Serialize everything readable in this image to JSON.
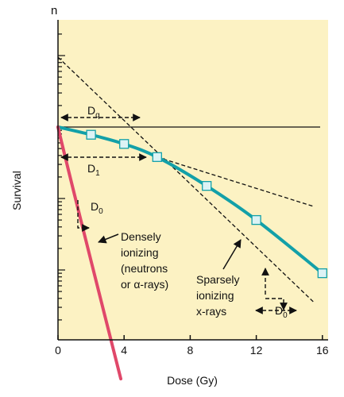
{
  "chart_data": {
    "type": "line",
    "title": "",
    "xlabel": "Dose (Gy)",
    "ylabel": "Survival",
    "xlim": [
      0,
      16
    ],
    "x_ticks": [
      0,
      4,
      8,
      12,
      16
    ],
    "y_scale": "log",
    "y_decades": 4,
    "grid": false,
    "series": [
      {
        "name": "Sparsely ionizing x-rays",
        "x": [
          0,
          2,
          4,
          6,
          9,
          12,
          16
        ],
        "y": [
          1.0,
          0.78,
          0.58,
          0.38,
          0.15,
          0.05,
          0.009
        ]
      },
      {
        "name": "Densely ionizing (neutrons or α-rays)",
        "x": [
          0,
          3.8
        ],
        "y": [
          1.0,
          0.0003
        ]
      }
    ],
    "markers": {
      "x": [
        2,
        4,
        6,
        9,
        12,
        16
      ],
      "y": [
        0.78,
        0.58,
        0.38,
        0.15,
        0.05,
        0.009
      ]
    },
    "reference_lines": {
      "extrapolation": {
        "x": [
          0,
          15.5
        ],
        "y": [
          9.5,
          0.0035
        ]
      },
      "initial_slope": {
        "x": [
          6,
          15.5
        ],
        "y": [
          0.38,
          0.077
        ]
      },
      "survival_one": 1.0
    },
    "annotations": {
      "n": "n",
      "dq": "D",
      "dq_sub": "q",
      "d1": "D",
      "d1_sub": "1",
      "d0_dense": "D",
      "d0_dense_sub": "0",
      "d0_sparse": "D",
      "d0_sparse_sub": "0",
      "densely_line1": "Densely",
      "densely_line2": "ionizing",
      "densely_line3": "(neutrons",
      "densely_line4": "or α-rays)",
      "sparsely_line1": "Sparsely",
      "sparsely_line2": "ionizing",
      "sparsely_line3": "x-rays"
    },
    "colors": {
      "background": "#fcf2c3",
      "sparse_curve": "#13a0a8",
      "dense_curve": "#e0486a",
      "marker_fill": "#ddf3f5",
      "marker_stroke": "#13a0a8",
      "text": "#111111"
    }
  }
}
